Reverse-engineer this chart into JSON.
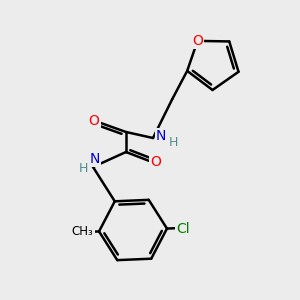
{
  "background_color": "#ececec",
  "bond_color": "#000000",
  "atom_colors": {
    "O": "#ff0000",
    "N": "#0000cd",
    "Cl": "#008000",
    "C": "#000000",
    "H": "#4a9090"
  },
  "figsize": [
    3.0,
    3.0
  ],
  "dpi": 100
}
